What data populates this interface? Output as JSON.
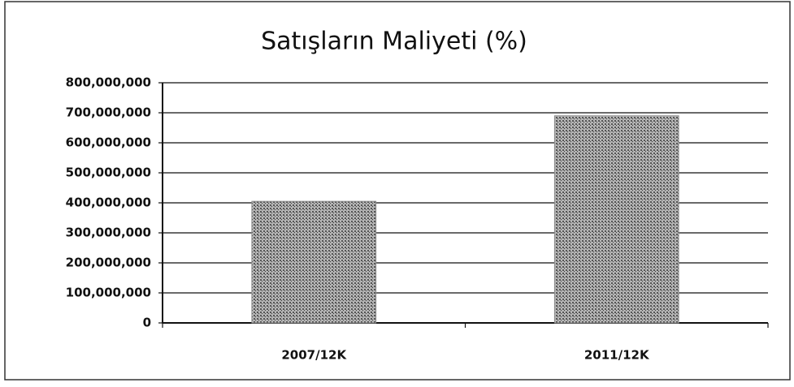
{
  "chart_data": {
    "type": "bar",
    "title": "Satışların Maliyeti (%)",
    "categories": [
      "2007/12K",
      "2011/12K"
    ],
    "values": [
      405000000,
      690000000
    ],
    "color": "#8c8c8c",
    "ylim": [
      0,
      800000000
    ],
    "yticks": [
      0,
      {
        "value": 100000000,
        "label": "100,000,000"
      },
      {
        "value": 200000000,
        "label": "200,000,000"
      },
      {
        "value": 300000000,
        "label": "300,000,000"
      },
      {
        "value": 400000000,
        "label": "400,000,000"
      },
      {
        "value": 500000000,
        "label": "500,000,000"
      },
      {
        "value": 600000000,
        "label": "600,000,000"
      },
      {
        "value": 700000000,
        "label": "700,000,000"
      },
      {
        "value": 800000000,
        "label": "800,000,000"
      }
    ],
    "grid": true
  }
}
